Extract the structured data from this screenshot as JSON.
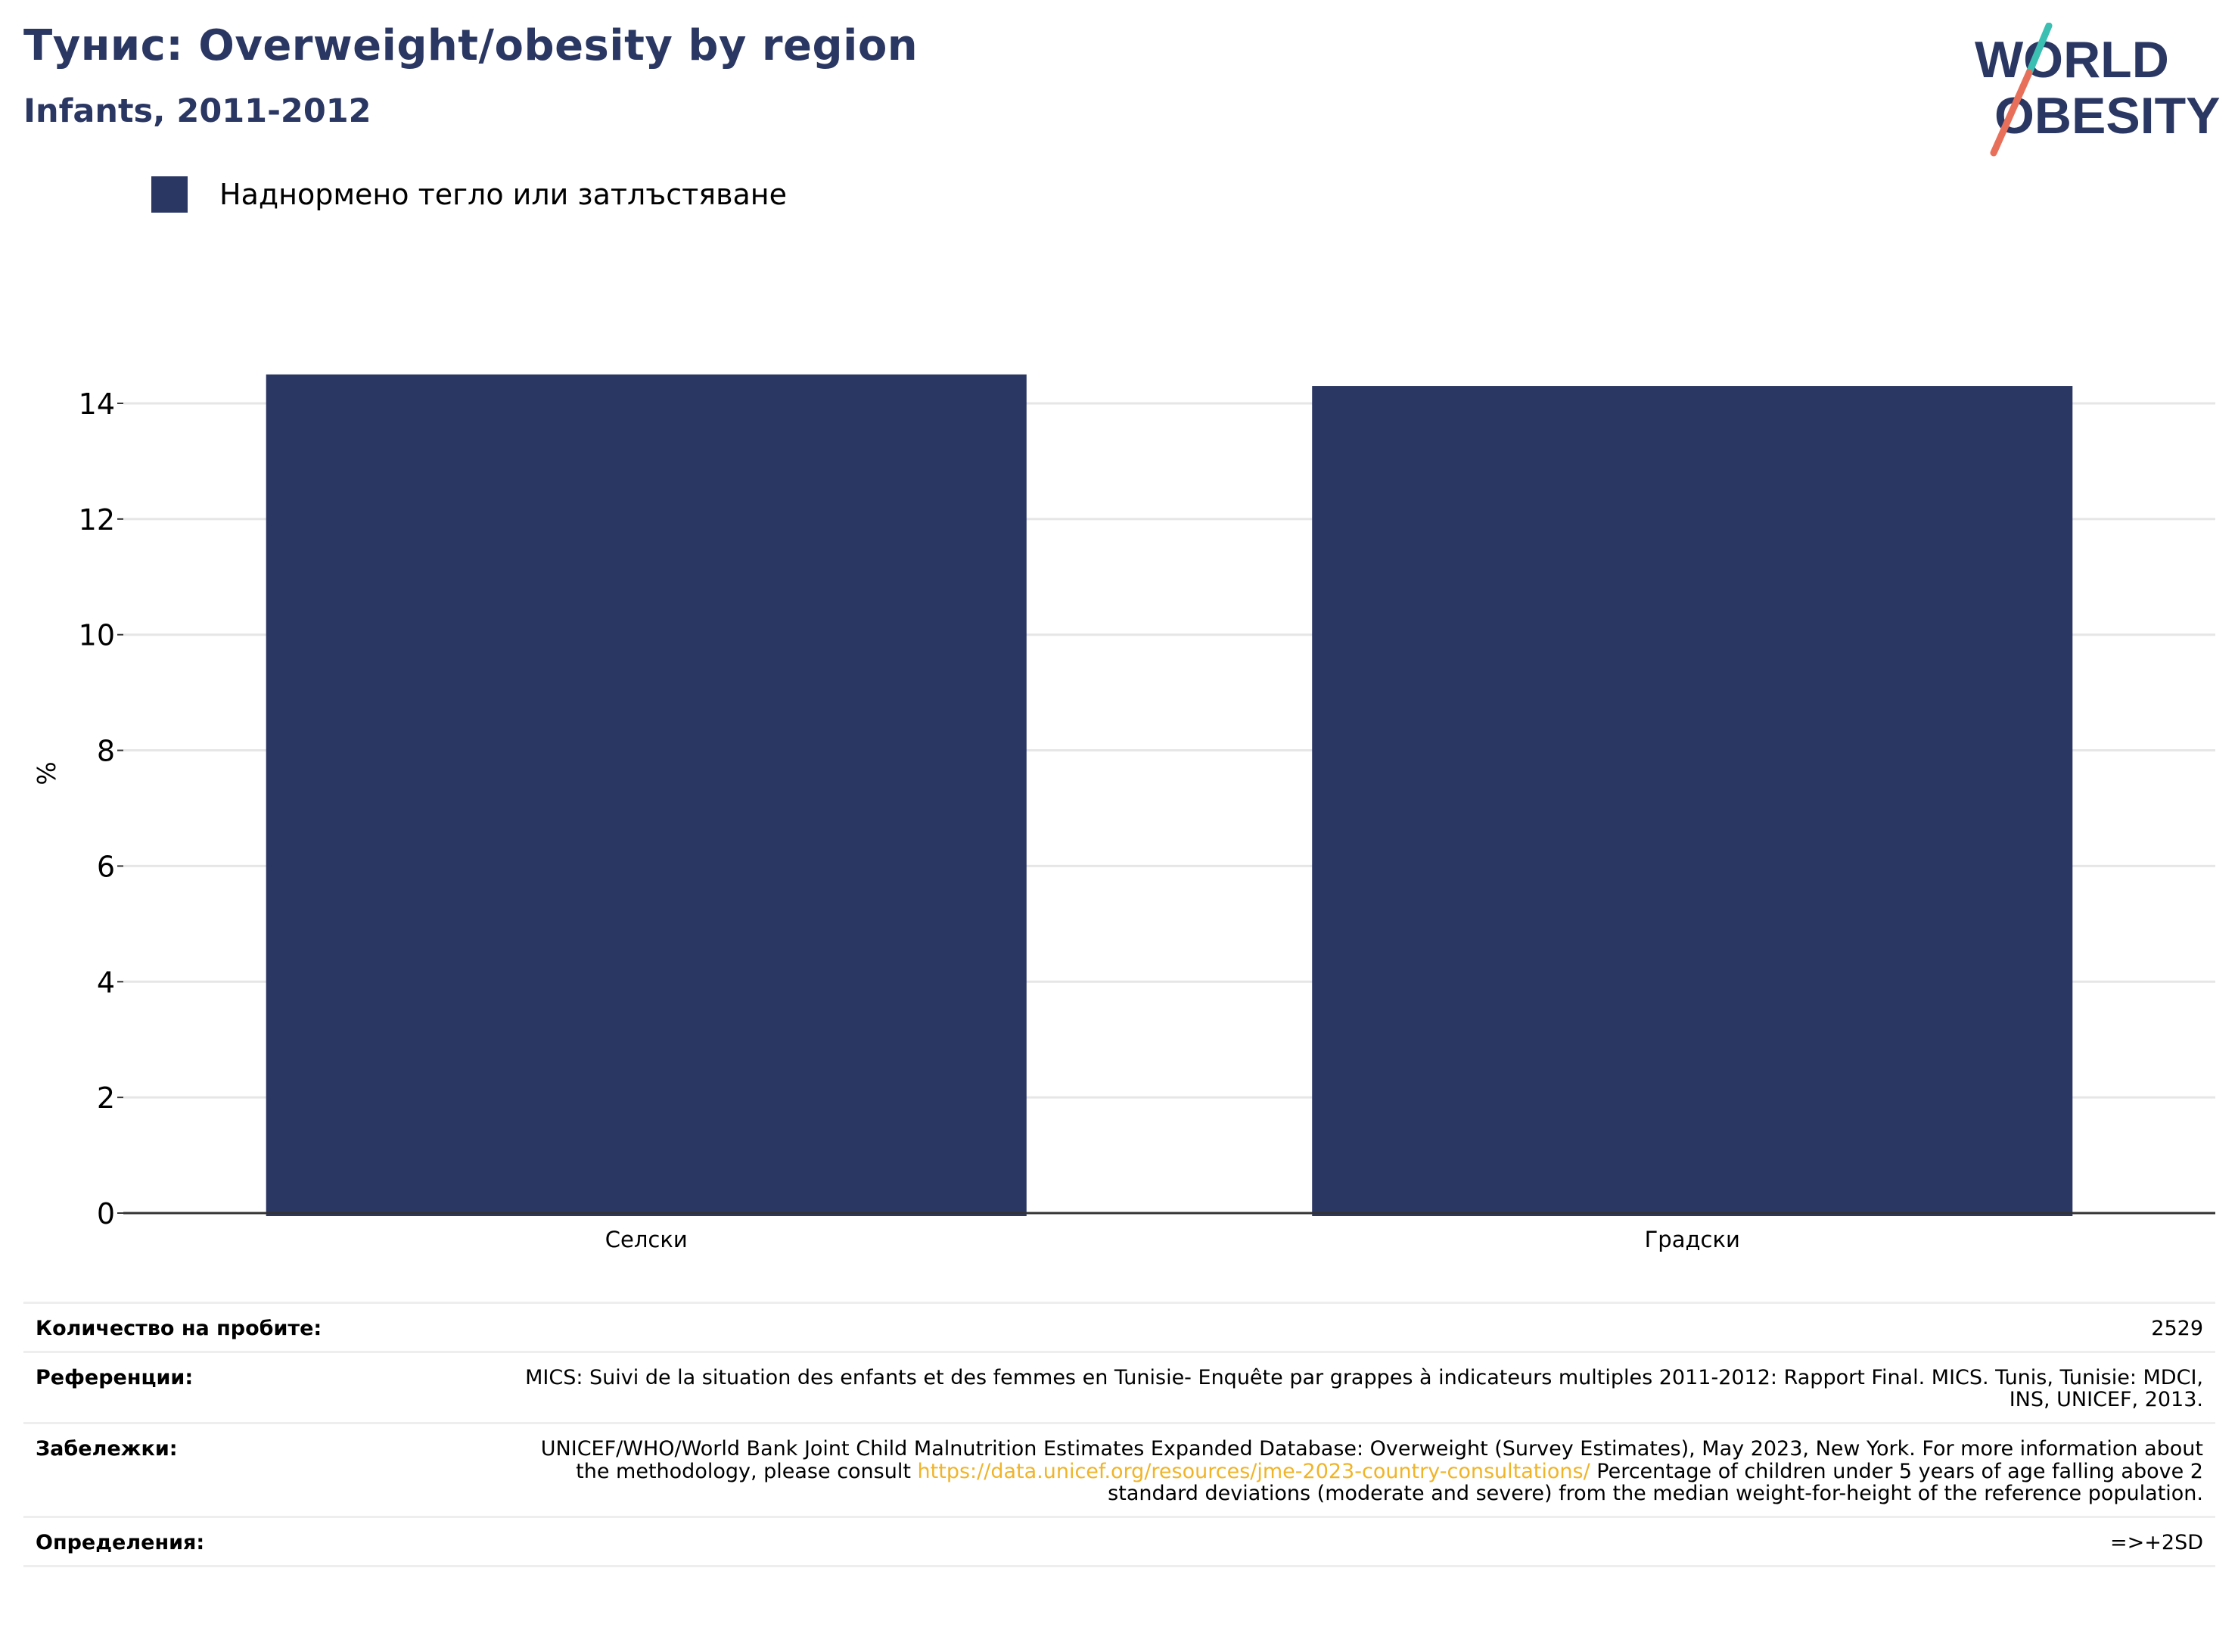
{
  "header": {
    "title": "Тунис: Overweight/obesity by region",
    "subtitle": "Infants, 2011-2012"
  },
  "logo": {
    "line1": "WORLD",
    "line2": "OBESITY"
  },
  "colors": {
    "bar": "#2b3763",
    "title": "#2b3763",
    "grid": "#e6e6e6",
    "link": "#f0b429"
  },
  "chart_data": {
    "type": "bar",
    "categories": [
      "Селски",
      "Градски"
    ],
    "series": [
      {
        "name": "Наднормено тегло или затлъстяване",
        "values": [
          14.5,
          14.3
        ]
      }
    ],
    "ylabel": "%",
    "ylim": [
      0,
      15
    ],
    "yticks": [
      0,
      2,
      4,
      6,
      8,
      10,
      12,
      14
    ],
    "grid": true,
    "legend": "top-left"
  },
  "notes": {
    "sample_label": "Количество на пробите:",
    "sample_value": "2529",
    "refs_label": "Референции:",
    "refs_value": "MICS: Suivi de la situation des enfants et des femmes en Tunisie- Enquête par grappes à indicateurs multiples 2011-2012: Rapport Final. MICS. Tunis, Tunisie: MDCI, INS, UNICEF, 2013.",
    "remarks_label": "Забележки:",
    "remarks_pre": "UNICEF/WHO/World Bank Joint Child Malnutrition Estimates Expanded Database: Overweight (Survey Estimates), May 2023, New York. For more information about the methodology, please consult",
    "remarks_link": "https://data.unicef.org/resources/jme-2023-country-consultations/",
    "remarks_post": "Percentage of children under 5 years of age falling above 2 standard deviations (moderate and severe) from the median weight-for-height of the reference population.",
    "defs_label": "Определения:",
    "defs_value": "=>+2SD"
  }
}
